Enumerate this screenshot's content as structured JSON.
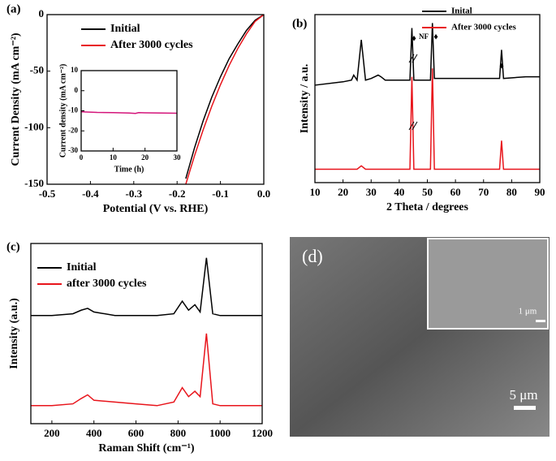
{
  "chart_data": [
    {
      "type": "line",
      "label": "(a)",
      "x_label": "Potential  (V vs. RHE)",
      "y_label": "Current Density (mA cm⁻²)",
      "x": [
        -0.18,
        -0.16,
        -0.14,
        -0.12,
        -0.1,
        -0.08,
        -0.06,
        -0.04,
        -0.02,
        0.0
      ],
      "series": [
        {
          "name": "Initial",
          "color": "#000000",
          "values": [
            -145,
            -118,
            -94,
            -73,
            -55,
            -39,
            -26,
            -14,
            -5,
            0
          ]
        },
        {
          "name": "After 3000 cycles",
          "color": "#e8141b",
          "values": [
            -150,
            -125,
            -102,
            -81,
            -62,
            -45,
            -30,
            -17,
            -6,
            0
          ]
        }
      ],
      "xlim": [
        -0.5,
        0.0
      ],
      "xticks": [
        -0.5,
        -0.4,
        -0.3,
        -0.2,
        -0.1,
        {
          "value": 0,
          "label": "0.0"
        }
      ],
      "ylim": [
        -150,
        0
      ],
      "yticks": [
        -150,
        -100,
        -50,
        0
      ]
    },
    {
      "type": "line",
      "x_label": "Time (h)",
      "y_label": "Current density (mA cm⁻²)",
      "x": [
        0,
        5,
        10,
        15,
        17,
        18,
        20,
        25,
        30
      ],
      "series": [
        {
          "color": "#d4147a",
          "values": [
            -10.5,
            -10.8,
            -10.9,
            -11.1,
            -11.3,
            -10.9,
            -11,
            -11.1,
            -11.2
          ]
        }
      ],
      "xlim": [
        0,
        30
      ],
      "xticks": [
        0,
        10,
        20,
        30
      ],
      "ylim": [
        -30,
        10
      ],
      "yticks": [
        -30,
        -20,
        -10,
        0,
        10
      ]
    },
    {
      "type": "line",
      "label": "(b)",
      "x_label": "2 Theta / degrees",
      "y_label": "Intensity / a.u.",
      "x": [
        10,
        20,
        23,
        23.8,
        25,
        26.5,
        28,
        30,
        32.5,
        33.5,
        35,
        40,
        43.8,
        44.5,
        45.2,
        50,
        51.1,
        51.8,
        52.5,
        60,
        70,
        75.7,
        76.4,
        77.1,
        85,
        90
      ],
      "series": [
        {
          "name": "Inital",
          "color": "#000000",
          "values": [
            58,
            60,
            61,
            64,
            61,
            85,
            61,
            62,
            64,
            63,
            61,
            61,
            61,
            92,
            61,
            61,
            61,
            95,
            62,
            62,
            62,
            62,
            79,
            62,
            63,
            63
          ]
        },
        {
          "name": "After 3000 cycles",
          "color": "#e8141b",
          "values": [
            8,
            8,
            8,
            8,
            8,
            10,
            8,
            8,
            8,
            8,
            8,
            8,
            8,
            63,
            8,
            8,
            8,
            68,
            8,
            8,
            8,
            8,
            25,
            8,
            8,
            8
          ]
        }
      ],
      "annotations": [
        "♦",
        "NF",
        "♦",
        "♦"
      ],
      "xlim": [
        10,
        90
      ],
      "xticks": [
        10,
        20,
        30,
        40,
        50,
        60,
        70,
        80,
        90
      ],
      "ylim": [
        0,
        100
      ]
    },
    {
      "type": "line",
      "label": "(c)",
      "x_label": "Raman Shift (cm⁻¹)",
      "y_label": "Intensity (a.u.)",
      "x": [
        100,
        200,
        300,
        340,
        370,
        400,
        500,
        600,
        700,
        780,
        820,
        850,
        880,
        905,
        935,
        965,
        1000,
        1100,
        1200
      ],
      "series": [
        {
          "name": "Initial",
          "color": "#000000",
          "values": [
            0.6,
            0.6,
            0.61,
            0.63,
            0.64,
            0.62,
            0.6,
            0.6,
            0.6,
            0.61,
            0.68,
            0.63,
            0.66,
            0.62,
            0.92,
            0.61,
            0.6,
            0.6,
            0.6
          ]
        },
        {
          "name": "after 3000 cycles",
          "color": "#e8141b",
          "values": [
            0.1,
            0.1,
            0.11,
            0.14,
            0.16,
            0.13,
            0.12,
            0.11,
            0.1,
            0.12,
            0.2,
            0.15,
            0.18,
            0.15,
            0.5,
            0.11,
            0.1,
            0.1,
            0.1
          ]
        }
      ],
      "xlim": [
        100,
        1200
      ],
      "xticks": [
        200,
        400,
        600,
        800,
        1000,
        1200
      ],
      "ylim": [
        0,
        1
      ]
    }
  ],
  "image": {
    "label": "(d)",
    "scale_bars": [
      "1 μm",
      "5 μm"
    ]
  }
}
